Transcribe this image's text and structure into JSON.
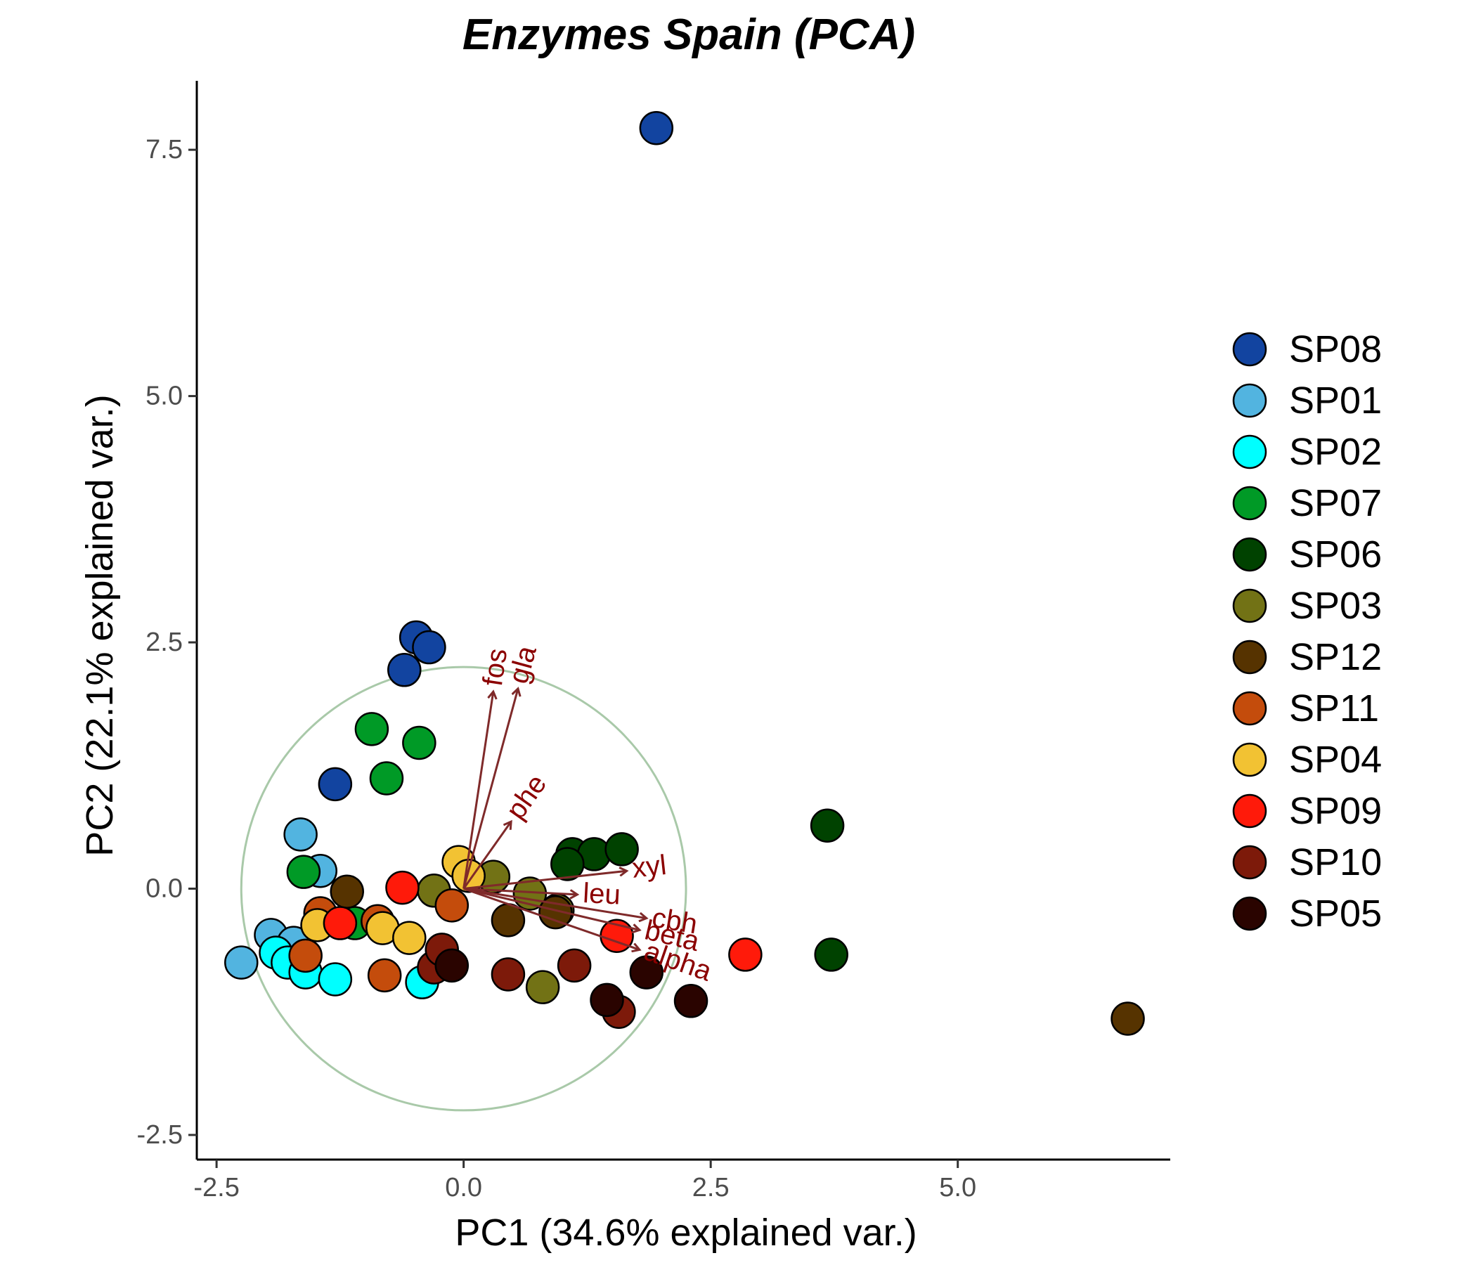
{
  "chart_data": {
    "type": "scatter",
    "title": "Enzymes Spain (PCA)",
    "xlabel": "PC1 (34.6% explained var.)",
    "ylabel": "PC2 (22.1% explained var.)",
    "xlim": [
      -2.7,
      7.15
    ],
    "ylim": [
      -2.75,
      8.2
    ],
    "x_ticks": [
      -2.5,
      0.0,
      2.5,
      5.0
    ],
    "y_ticks": [
      -2.5,
      0.0,
      2.5,
      5.0,
      7.5
    ],
    "x_tick_labels": [
      "-2.5",
      "0.0",
      "2.5",
      "5.0"
    ],
    "y_tick_labels": [
      "-2.5",
      "0.0",
      "2.5",
      "5.0",
      "7.5"
    ],
    "grid": false,
    "legend_position": "right",
    "circle": {
      "cx": 0,
      "cy": 0,
      "r": 2.25,
      "color": "#a9c9a9"
    },
    "loading_color": "#7f2a2a",
    "loadings": [
      {
        "label": "fos",
        "x": 0.3,
        "y": 2.0
      },
      {
        "label": "gla",
        "x": 0.55,
        "y": 2.03
      },
      {
        "label": "phe",
        "x": 0.48,
        "y": 0.68
      },
      {
        "label": "xyl",
        "x": 1.65,
        "y": 0.18
      },
      {
        "label": "leu",
        "x": 1.15,
        "y": -0.06
      },
      {
        "label": "cbh",
        "x": 1.85,
        "y": -0.3
      },
      {
        "label": "beta",
        "x": 1.78,
        "y": -0.42
      },
      {
        "label": "alpha",
        "x": 1.78,
        "y": -0.62
      }
    ],
    "series": [
      {
        "name": "SP08",
        "color": "#1244a0",
        "points": [
          [
            1.95,
            7.72
          ],
          [
            -0.48,
            2.55
          ],
          [
            -0.35,
            2.45
          ],
          [
            -0.6,
            2.22
          ],
          [
            -1.3,
            1.06
          ]
        ]
      },
      {
        "name": "SP01",
        "color": "#52b4e0",
        "points": [
          [
            -2.25,
            -0.75
          ],
          [
            -1.95,
            -0.47
          ],
          [
            -1.65,
            0.55
          ],
          [
            -1.45,
            0.18
          ],
          [
            -1.72,
            -0.55
          ]
        ]
      },
      {
        "name": "SP02",
        "color": "#00ffff",
        "points": [
          [
            -1.9,
            -0.65
          ],
          [
            -1.78,
            -0.75
          ],
          [
            -1.6,
            -0.85
          ],
          [
            -1.3,
            -0.92
          ],
          [
            -0.42,
            -0.95
          ]
        ]
      },
      {
        "name": "SP07",
        "color": "#009a26",
        "points": [
          [
            -0.93,
            1.62
          ],
          [
            -0.45,
            1.48
          ],
          [
            -0.78,
            1.12
          ],
          [
            -1.62,
            0.17
          ],
          [
            -1.1,
            -0.35
          ]
        ]
      },
      {
        "name": "SP06",
        "color": "#004200",
        "points": [
          [
            3.68,
            0.64
          ],
          [
            3.72,
            -0.67
          ],
          [
            1.1,
            0.35
          ],
          [
            1.32,
            0.35
          ],
          [
            1.6,
            0.4
          ],
          [
            1.05,
            0.25
          ]
        ]
      },
      {
        "name": "SP03",
        "color": "#727215",
        "points": [
          [
            0.3,
            0.12
          ],
          [
            -0.3,
            -0.02
          ],
          [
            0.67,
            -0.05
          ],
          [
            0.95,
            -0.22
          ],
          [
            0.8,
            -1.0
          ]
        ]
      },
      {
        "name": "SP12",
        "color": "#563300",
        "points": [
          [
            6.72,
            -1.32
          ],
          [
            -1.18,
            -0.03
          ],
          [
            0.45,
            -0.32
          ],
          [
            0.93,
            -0.24
          ]
        ]
      },
      {
        "name": "SP11",
        "color": "#c44c0c",
        "points": [
          [
            -1.45,
            -0.25
          ],
          [
            -0.87,
            -0.33
          ],
          [
            -0.12,
            -0.17
          ],
          [
            -0.8,
            -0.88
          ],
          [
            -1.6,
            -0.68
          ]
        ]
      },
      {
        "name": "SP04",
        "color": "#f2c233",
        "points": [
          [
            -0.05,
            0.27
          ],
          [
            0.05,
            0.13
          ],
          [
            -0.82,
            -0.4
          ],
          [
            -0.55,
            -0.5
          ],
          [
            -1.48,
            -0.37
          ]
        ]
      },
      {
        "name": "SP09",
        "color": "#ff1a0a",
        "points": [
          [
            -0.62,
            0.01
          ],
          [
            -1.25,
            -0.35
          ],
          [
            1.55,
            -0.48
          ],
          [
            2.85,
            -0.67
          ]
        ]
      },
      {
        "name": "SP10",
        "color": "#7d1a0a",
        "points": [
          [
            -0.3,
            -0.8
          ],
          [
            -0.22,
            -0.62
          ],
          [
            0.45,
            -0.87
          ],
          [
            1.12,
            -0.78
          ],
          [
            1.57,
            -1.25
          ]
        ]
      },
      {
        "name": "SP05",
        "color": "#2a0400",
        "points": [
          [
            -0.12,
            -0.78
          ],
          [
            1.85,
            -0.85
          ],
          [
            2.3,
            -1.14
          ],
          [
            1.45,
            -1.13
          ]
        ]
      }
    ]
  }
}
